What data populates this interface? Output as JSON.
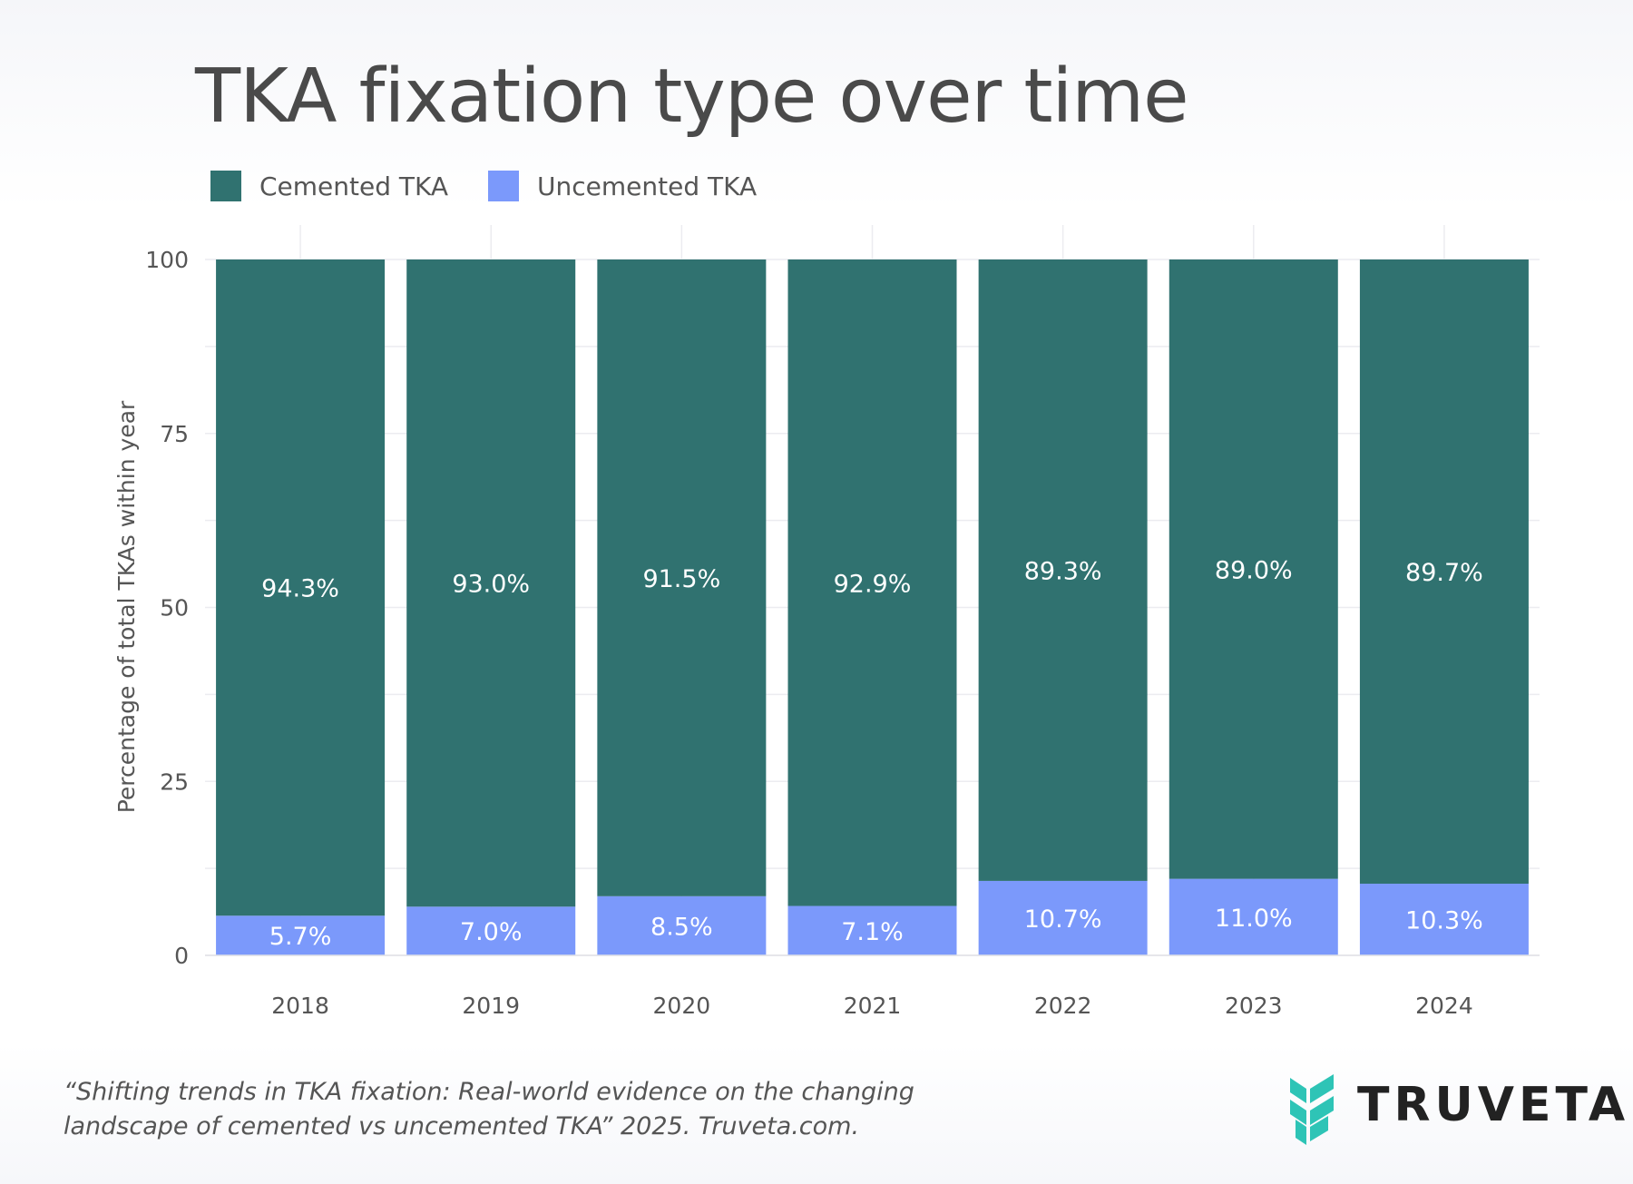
{
  "chart_data": {
    "type": "bar",
    "stacked": true,
    "title": "TKA fixation type over time",
    "ylabel": "Percentage of total TKAs within year",
    "xlabel": "",
    "ylim": [
      0,
      100
    ],
    "yticks": [
      0,
      25,
      50,
      75,
      100
    ],
    "categories": [
      "2018",
      "2019",
      "2020",
      "2021",
      "2022",
      "2023",
      "2024"
    ],
    "series": [
      {
        "name": "Uncemented TKA",
        "color": "#7b99fb",
        "values": [
          5.7,
          7.0,
          8.5,
          7.1,
          10.7,
          11.0,
          10.3
        ],
        "labels": [
          "5.7%",
          "7.0%",
          "8.5%",
          "7.1%",
          "10.7%",
          "11.0%",
          "10.3%"
        ]
      },
      {
        "name": "Cemented TKA",
        "color": "#307270",
        "values": [
          94.3,
          93.0,
          91.5,
          92.9,
          89.3,
          89.0,
          89.7
        ],
        "labels": [
          "94.3%",
          "93.0%",
          "91.5%",
          "92.9%",
          "89.3%",
          "89.0%",
          "89.7%"
        ]
      }
    ],
    "legend": [
      {
        "name": "Cemented TKA",
        "color": "#307270"
      },
      {
        "name": "Uncemented TKA",
        "color": "#7b99fb"
      }
    ],
    "grid": true,
    "legend_position": "top-left"
  },
  "citation": {
    "line1": "“Shifting trends in TKA fixation: Real-world evidence on the changing",
    "line2": "landscape of cemented vs uncemented TKA” 2025. Truveta.com."
  },
  "brand": {
    "name": "TRUVETA",
    "logo_icon": "truveta-chevron-icon",
    "logo_color": "#2ec4b6"
  }
}
